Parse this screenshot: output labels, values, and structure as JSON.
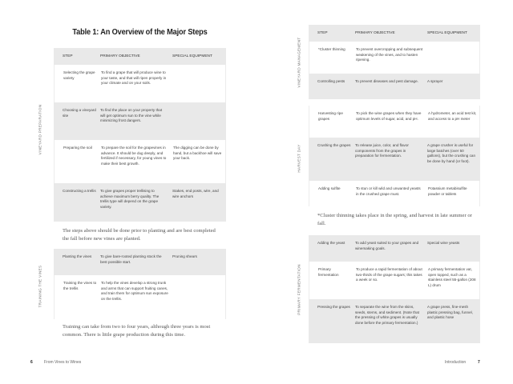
{
  "left_page": {
    "title": "Table 1: An Overview of the Major Steps",
    "headers": [
      "STEP",
      "PRIMARY OBJECTIVE",
      "SPECIAL EQUIPMENT"
    ],
    "section_labels": [
      "VINEYARD PREPARATION",
      "TRAINING THE VINES"
    ],
    "table1_rows": [
      [
        "Selecting the grape variety",
        "To find a grape that will produce wine to your taste, and that will ripen properly in your climate and on your soils.",
        ""
      ],
      [
        "Choosing a vineyard site",
        "To find the place on your property that will get optimum sun to the vine while minimizing frost dangers.",
        ""
      ],
      [
        "Preparing the soil",
        "To prepare the soil for the grapevines in advance. It should be dug deeply, and fertilized if necessary, for young vines to make their best growth.",
        "The digging can be done by hand, but a backhoe will save your back."
      ],
      [
        "Constructing a trellis",
        "To give grapes proper trellising to achieve maximum berry quality. The trellis type will depend on the grape variety.",
        "Stakes, end posts, wire, and wire anchors"
      ]
    ],
    "paragraph1": "The steps above should be done prior to planting and are best completed the fall before new vines are planted.",
    "table2_rows": [
      [
        "Planting the vines",
        "To give bare-rooted planting stock the best possible start.",
        "Pruning shears"
      ],
      [
        "Training the vines to the trellis",
        "To help the vines develop a strong trunk and arms that can support fruiting canes, and train them for optimum sun exposure on the trellis.",
        ""
      ]
    ],
    "paragraph2": "Training can take from two to four years, although three years is most common. There is little grape production during this time.",
    "page_number": "6",
    "running_title": "From Vines to Wines"
  },
  "right_page": {
    "headers": [
      "STEP",
      "PRIMARY OBJECTIVE",
      "SPECIAL EQUIPMENT"
    ],
    "section_labels": [
      "VINEYARD MANAGEMENT",
      "HARVEST DAY",
      "PRIMARY FERMENTATION"
    ],
    "table1_rows": [
      [
        "*Cluster thinning",
        "To prevent overcropping and subsequent weakening of the vines, and to hasten ripening.",
        ""
      ],
      [
        "Controlling pests",
        "To prevent diseases and pest damage.",
        "A sprayer"
      ]
    ],
    "table2_rows": [
      [
        "Harvesting ripe grapes",
        "To pick the wine grapes when they have optimum levels of sugar, acid, and pH.",
        "A hydrometer, an acid test kit, and access to a pH meter"
      ],
      [
        "Crushing the grapes",
        "To release juice, color, and flavor components from the grapes in preparation for fermentation.",
        "A grape crusher is useful for large batches (over 50 gallons), but the crushing can be done by hand (or foot)."
      ],
      [
        "Adding sulfite",
        "To stun or kill wild and unwanted yeasts in the crushed grape must.",
        "Potassium metabisulfite powder or tablets"
      ]
    ],
    "footnote": "*Cluster thinning takes place in the spring, and harvest in late summer or fall.",
    "table3_rows": [
      [
        "Adding the yeast",
        "To add yeast suited to your grapes and winemaking goals.",
        "Special wine yeasts"
      ],
      [
        "Primary fermentation",
        "To produce a rapid fermentation of about two-thirds of the grape sugars; this takes a week or so.",
        "A primary fermentation vat, open topped, such as a stainless steel 55-gallon (208 L) drum"
      ],
      [
        "Pressing the grapes",
        "To separate the wine from the skins, seeds, stems, and sediment. (Note that the pressing of white grapes is usually done before the primary fermentation.)",
        "A grape press, fine-mesh plastic pressing bag, funnel, and plastic hose"
      ]
    ],
    "running_title": "Introduction",
    "page_number": "7"
  }
}
